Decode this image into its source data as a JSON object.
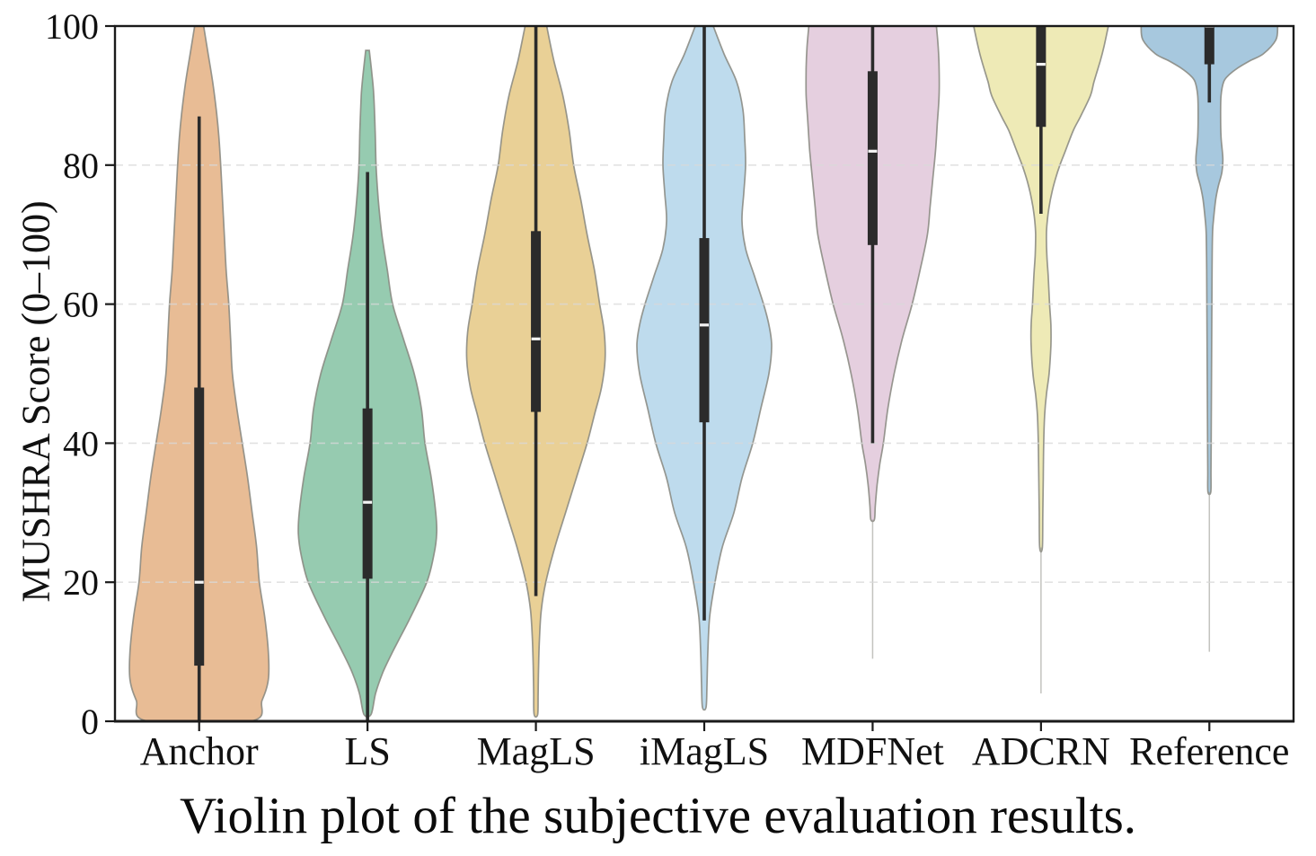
{
  "figure": {
    "caption": "Violin plot of the subjective evaluation results.",
    "background": "#ffffff"
  },
  "chart_data": {
    "type": "violin",
    "title": "",
    "xlabel": "",
    "ylabel": "MUSHRA Score (0–100)",
    "ylim": [
      0,
      100
    ],
    "yticks": [
      0,
      20,
      40,
      60,
      80,
      100
    ],
    "grid": "horizontal dashed gridlines at 20, 40, 60, 80",
    "legend": "none",
    "frame": "full box border with outward ticks",
    "grid_color": "#d8d8d8",
    "box_color": "#2b2b2b",
    "median_color": "#ffffff",
    "edge_color": "#87877f",
    "categories": [
      "Anchor",
      "LS",
      "MagLS",
      "iMagLS",
      "MDFNet",
      "ADCRN",
      "Reference"
    ],
    "series": [
      {
        "name": "Anchor",
        "fill": "#e8bc95",
        "box": {
          "whisker_low": 0,
          "q1": 8,
          "median": 20,
          "q3": 48,
          "whisker_high": 87
        },
        "density_profile": [
          [
            100,
            5
          ],
          [
            96,
            10
          ],
          [
            92,
            15
          ],
          [
            88,
            19
          ],
          [
            84,
            22
          ],
          [
            80,
            24
          ],
          [
            75,
            26
          ],
          [
            70,
            28
          ],
          [
            65,
            30
          ],
          [
            60,
            33
          ],
          [
            55,
            35
          ],
          [
            50,
            37
          ],
          [
            45,
            42
          ],
          [
            40,
            48
          ],
          [
            35,
            54
          ],
          [
            30,
            59
          ],
          [
            25,
            64
          ],
          [
            20,
            67
          ],
          [
            15,
            73
          ],
          [
            10,
            77
          ],
          [
            6,
            77
          ],
          [
            3,
            70
          ],
          [
            0,
            57
          ]
        ],
        "tail_line": null
      },
      {
        "name": "LS",
        "fill": "#96cbb0",
        "box": {
          "whisker_low": 0,
          "q1": 20.5,
          "median": 31.5,
          "q3": 45,
          "whisker_high": 79
        },
        "density_profile": [
          [
            96.5,
            2
          ],
          [
            93,
            5
          ],
          [
            90,
            7
          ],
          [
            85,
            8.5
          ],
          [
            80,
            9.5
          ],
          [
            75,
            12
          ],
          [
            70,
            16
          ],
          [
            65,
            22
          ],
          [
            60,
            28
          ],
          [
            55,
            40
          ],
          [
            50,
            52
          ],
          [
            45,
            60
          ],
          [
            40,
            64
          ],
          [
            35,
            71
          ],
          [
            30,
            76
          ],
          [
            27,
            77
          ],
          [
            24,
            74
          ],
          [
            20,
            66
          ],
          [
            15,
            48
          ],
          [
            12,
            36
          ],
          [
            10,
            28
          ],
          [
            7,
            17
          ],
          [
            4,
            9
          ],
          [
            1,
            4
          ]
        ],
        "tail_line": null
      },
      {
        "name": "MagLS",
        "fill": "#e9d096",
        "box": {
          "whisker_low": 18,
          "q1": 44.5,
          "median": 55,
          "q3": 70.5,
          "whisker_high": 100
        },
        "density_profile": [
          [
            100,
            12
          ],
          [
            95,
            20
          ],
          [
            90,
            30
          ],
          [
            85,
            37
          ],
          [
            80,
            42
          ],
          [
            75,
            50
          ],
          [
            70,
            57
          ],
          [
            65,
            65
          ],
          [
            60,
            71
          ],
          [
            56,
            76
          ],
          [
            52,
            77
          ],
          [
            48,
            73
          ],
          [
            44,
            65
          ],
          [
            40,
            57
          ],
          [
            35,
            45
          ],
          [
            30,
            33
          ],
          [
            25,
            21
          ],
          [
            20,
            11
          ],
          [
            16,
            6
          ],
          [
            12,
            4
          ],
          [
            8,
            3
          ],
          [
            4,
            2.5
          ],
          [
            1,
            2
          ]
        ],
        "tail_line": null
      },
      {
        "name": "iMagLS",
        "fill": "#bedbed",
        "box": {
          "whisker_low": 14.5,
          "q1": 43,
          "median": 57,
          "q3": 69.5,
          "whisker_high": 100
        },
        "density_profile": [
          [
            100,
            10
          ],
          [
            96,
            22
          ],
          [
            92,
            36
          ],
          [
            88,
            43
          ],
          [
            84,
            45
          ],
          [
            80,
            46
          ],
          [
            76,
            44
          ],
          [
            72,
            42
          ],
          [
            68,
            46
          ],
          [
            64,
            56
          ],
          [
            60,
            66
          ],
          [
            57,
            72
          ],
          [
            54,
            75
          ],
          [
            50,
            72
          ],
          [
            45,
            63
          ],
          [
            40,
            54
          ],
          [
            35,
            42
          ],
          [
            30,
            33
          ],
          [
            25,
            20
          ],
          [
            20,
            12
          ],
          [
            15,
            6
          ],
          [
            10,
            4
          ],
          [
            5,
            3
          ],
          [
            2,
            2
          ]
        ],
        "tail_line": null
      },
      {
        "name": "MDFNet",
        "fill": "#e5cfdf",
        "box": {
          "whisker_low": 40,
          "q1": 68.5,
          "median": 82,
          "q3": 93.5,
          "whisker_high": 100
        },
        "density_profile": [
          [
            100,
            71
          ],
          [
            97,
            73
          ],
          [
            94,
            74
          ],
          [
            90,
            74
          ],
          [
            86,
            72
          ],
          [
            82,
            70
          ],
          [
            78,
            67
          ],
          [
            74,
            64
          ],
          [
            70,
            61
          ],
          [
            65,
            53
          ],
          [
            60,
            44
          ],
          [
            55,
            33
          ],
          [
            50,
            24
          ],
          [
            45,
            17
          ],
          [
            40,
            12
          ],
          [
            37,
            8
          ],
          [
            34,
            5
          ],
          [
            31,
            3
          ],
          [
            29,
            2
          ]
        ],
        "tail_line": {
          "from": 29,
          "to": 9
        }
      },
      {
        "name": "ADCRN",
        "fill": "#eeeab6",
        "box": {
          "whisker_low": 73,
          "q1": 85.5,
          "median": 94.5,
          "q3": 100,
          "whisker_high": 100
        },
        "density_profile": [
          [
            100,
            75
          ],
          [
            97,
            70
          ],
          [
            95,
            66
          ],
          [
            92,
            59
          ],
          [
            90,
            55
          ],
          [
            87,
            44
          ],
          [
            85,
            36
          ],
          [
            82,
            27
          ],
          [
            80,
            21
          ],
          [
            78,
            16
          ],
          [
            76,
            12
          ],
          [
            74,
            9
          ],
          [
            72,
            7
          ],
          [
            70,
            6
          ],
          [
            67,
            6.5
          ],
          [
            64,
            8
          ],
          [
            60,
            9.5
          ],
          [
            57,
            11
          ],
          [
            54,
            11
          ],
          [
            50,
            9
          ],
          [
            47,
            6
          ],
          [
            44,
            4
          ],
          [
            40,
            3
          ],
          [
            35,
            2.5
          ],
          [
            30,
            2
          ],
          [
            25,
            1.5
          ]
        ],
        "tail_line": {
          "from": 25,
          "to": 4
        }
      },
      {
        "name": "Reference",
        "fill": "#a7c8de",
        "box": {
          "whisker_low": 89,
          "q1": 94.5,
          "median": 100,
          "q3": 100,
          "whisker_high": 100
        },
        "density_profile": [
          [
            100,
            76
          ],
          [
            98,
            74
          ],
          [
            96,
            60
          ],
          [
            95,
            45
          ],
          [
            94,
            32
          ],
          [
            93,
            22
          ],
          [
            92,
            16
          ],
          [
            90,
            13
          ],
          [
            87,
            12.5
          ],
          [
            84,
            13
          ],
          [
            81,
            15
          ],
          [
            79,
            14
          ],
          [
            77,
            10
          ],
          [
            75,
            7
          ],
          [
            72,
            4.5
          ],
          [
            70,
            3.5
          ],
          [
            65,
            3
          ],
          [
            60,
            2.8
          ],
          [
            55,
            2.6
          ],
          [
            50,
            2.4
          ],
          [
            45,
            2.2
          ],
          [
            40,
            2
          ],
          [
            36,
            1.8
          ],
          [
            33,
            1.6
          ]
        ],
        "tail_line": {
          "from": 33,
          "to": 10
        }
      }
    ]
  }
}
